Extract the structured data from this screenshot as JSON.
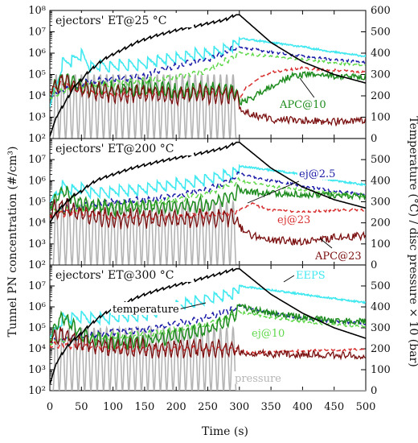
{
  "chart_data": {
    "type": "line",
    "xlabel": "Time (s)",
    "ylabel_left": "Tunnel PN concentration (#/cm³)",
    "ylabel_right": "Temperature (°C) / disc pressure × 10 (bar)",
    "x_ticks": [
      0,
      50,
      100,
      150,
      200,
      250,
      300,
      350,
      400,
      450,
      500
    ],
    "xlim": [
      0,
      500
    ],
    "y_left_scale": "log",
    "y_left_ticks": [
      "10²",
      "10³",
      "10⁴",
      "10⁵",
      "10⁶",
      "10⁷",
      "10⁸"
    ],
    "y_left_exponents": [
      2,
      3,
      4,
      5,
      6,
      7,
      8
    ],
    "y_right_ticks": [
      0,
      100,
      200,
      300,
      400,
      500,
      600
    ],
    "y_right_lim": [
      0,
      600
    ],
    "colors": {
      "temperature": "#000000",
      "pressure": "#b4b4b4",
      "EEPS": "#40e8f0",
      "ej2_5": "#1a1aa8",
      "ej10": "#5fd84a",
      "ej23": "#d83030",
      "APC10": "#1e8c1e",
      "APC23": "#7a0e0e"
    },
    "panels": [
      {
        "title": "ejectors' ET@25 °C",
        "temperature": {
          "x": [
            0,
            10,
            20,
            30,
            40,
            50,
            60,
            70,
            80,
            90,
            100,
            110,
            120,
            130,
            140,
            150,
            160,
            170,
            180,
            190,
            200,
            210,
            220,
            230,
            240,
            250,
            260,
            270,
            280,
            290,
            295,
            300,
            350,
            400,
            450,
            500
          ],
          "y": [
            10,
            100,
            150,
            200,
            250,
            275,
            310,
            335,
            360,
            380,
            395,
            410,
            425,
            440,
            455,
            465,
            475,
            485,
            492,
            500,
            508,
            515,
            520,
            527,
            533,
            540,
            546,
            552,
            560,
            575,
            580,
            580,
            450,
            360,
            300,
            260
          ]
        },
        "EEPS_peaks": {
          "x": [
            0,
            20,
            35,
            50,
            65,
            80,
            95,
            110,
            125,
            140,
            155,
            170,
            185,
            200,
            215,
            230,
            245,
            260,
            275,
            290,
            300,
            350,
            400,
            450,
            500
          ],
          "y": [
            3.5,
            5.8,
            5.9,
            6.2,
            5.6,
            5.7,
            5.6,
            5.7,
            5.7,
            5.7,
            5.8,
            5.9,
            6.0,
            6.0,
            6.1,
            6.2,
            6.2,
            6.3,
            6.4,
            6.6,
            6.7,
            6.5,
            6.3,
            6.05,
            5.85
          ]
        },
        "ej2_5": {
          "x": [
            0,
            50,
            100,
            150,
            170,
            200,
            230,
            260,
            290,
            300,
            350,
            400,
            450,
            500
          ],
          "y": [
            4.0,
            4.6,
            4.8,
            4.9,
            5.2,
            5.4,
            5.6,
            5.8,
            6.2,
            6.3,
            6.05,
            5.85,
            5.7,
            5.55
          ]
        },
        "ej10": {
          "x": [
            0,
            50,
            100,
            150,
            200,
            250,
            290,
            300,
            350,
            400,
            450,
            500
          ],
          "y": [
            4.0,
            4.5,
            4.6,
            4.7,
            4.9,
            5.2,
            5.8,
            6.0,
            5.85,
            5.7,
            5.55,
            5.4
          ]
        },
        "ej23": {
          "x": [
            0,
            20,
            50,
            100,
            150,
            200,
            250,
            295,
            300,
            310,
            330,
            350,
            400,
            450,
            500
          ],
          "y": [
            4.2,
            4.6,
            4.2,
            4.0,
            4.1,
            4.1,
            4.1,
            4.1,
            3.8,
            4.4,
            4.8,
            5.1,
            5.3,
            5.2,
            5.1
          ]
        },
        "APC10": {
          "x": [
            0,
            20,
            50,
            100,
            150,
            200,
            250,
            295,
            300,
            320,
            340,
            360,
            380,
            400,
            430,
            460,
            500
          ],
          "y": [
            4.2,
            4.8,
            4.4,
            4.3,
            4.4,
            4.2,
            4.3,
            4.2,
            3.7,
            3.9,
            4.3,
            4.6,
            4.9,
            5.0,
            5.0,
            4.9,
            4.9
          ]
        },
        "APC23": {
          "x": [
            0,
            20,
            50,
            100,
            150,
            200,
            250,
            295,
            300,
            320,
            350,
            400,
            450,
            500
          ],
          "y": [
            4.3,
            4.7,
            4.3,
            4.1,
            4.1,
            4.0,
            4.1,
            4.0,
            3.4,
            3.1,
            2.9,
            2.85,
            2.8,
            2.8
          ]
        },
        "annotations": [
          {
            "text": "APC@10",
            "color": "#1e8c1e"
          }
        ]
      },
      {
        "title": "ejectors' ET@200 °C",
        "temperature": {
          "x": [
            0,
            10,
            20,
            30,
            40,
            50,
            60,
            70,
            80,
            90,
            100,
            110,
            120,
            130,
            140,
            150,
            160,
            170,
            180,
            190,
            200,
            210,
            220,
            230,
            240,
            250,
            260,
            270,
            280,
            290,
            295,
            300,
            350,
            400,
            450,
            500
          ],
          "y": [
            200,
            250,
            280,
            310,
            335,
            350,
            375,
            395,
            410,
            420,
            430,
            440,
            450,
            460,
            468,
            475,
            482,
            490,
            496,
            502,
            508,
            514,
            520,
            526,
            532,
            538,
            545,
            552,
            560,
            575,
            582,
            582,
            460,
            370,
            310,
            270
          ]
        },
        "EEPS_peaks": {
          "x": [
            0,
            20,
            35,
            50,
            65,
            80,
            95,
            110,
            125,
            140,
            155,
            170,
            185,
            200,
            215,
            230,
            245,
            260,
            275,
            290,
            300,
            350,
            400,
            450,
            500
          ],
          "y": [
            5.0,
            6.0,
            5.8,
            5.9,
            5.7,
            5.7,
            5.7,
            5.8,
            5.8,
            5.8,
            5.9,
            6.0,
            6.0,
            6.1,
            6.1,
            6.2,
            6.3,
            6.4,
            6.5,
            6.6,
            6.7,
            6.5,
            6.3,
            6.0,
            5.8
          ]
        },
        "ej2_5": {
          "x": [
            0,
            50,
            100,
            150,
            200,
            250,
            290,
            300,
            350,
            400,
            450,
            500
          ],
          "y": [
            4.5,
            4.8,
            5.0,
            5.1,
            5.3,
            5.6,
            6.1,
            6.35,
            6.0,
            5.75,
            5.5,
            5.35
          ]
        },
        "ej10": {
          "x": [
            0,
            50,
            100,
            150,
            200,
            250,
            290,
            300,
            350,
            400,
            450,
            500
          ],
          "y": [
            4.5,
            4.7,
            4.8,
            4.9,
            5.1,
            5.4,
            5.9,
            6.0,
            5.75,
            5.55,
            5.4,
            5.25
          ]
        },
        "ej23": {
          "x": [
            0,
            50,
            100,
            150,
            200,
            250,
            290,
            300,
            320,
            350,
            400,
            450,
            500
          ],
          "y": [
            4.4,
            4.5,
            4.3,
            4.3,
            4.3,
            4.4,
            4.5,
            4.6,
            4.9,
            4.6,
            4.5,
            4.6,
            4.6
          ]
        },
        "APC10": {
          "x": [
            0,
            20,
            50,
            100,
            150,
            200,
            250,
            290,
            300,
            350,
            400,
            450,
            500
          ],
          "y": [
            4.8,
            5.5,
            4.9,
            4.7,
            4.8,
            4.8,
            4.9,
            5.3,
            5.5,
            5.4,
            5.35,
            5.3,
            5.3
          ]
        },
        "APC23": {
          "x": [
            0,
            20,
            50,
            100,
            150,
            200,
            250,
            290,
            300,
            320,
            350,
            400,
            450,
            500
          ],
          "y": [
            4.5,
            4.8,
            4.4,
            4.2,
            4.2,
            4.2,
            4.2,
            4.3,
            3.8,
            3.4,
            3.2,
            3.1,
            3.3,
            3.4
          ]
        },
        "annotations": [
          {
            "text": "ej@2.5",
            "color": "#1a1aa8"
          },
          {
            "text": "ej@23",
            "color": "#d83030"
          },
          {
            "text": "APC@23",
            "color": "#7a0e0e"
          }
        ]
      },
      {
        "title": "ejectors' ET@300 °C",
        "temperature": {
          "x": [
            0,
            10,
            20,
            30,
            40,
            50,
            60,
            70,
            80,
            90,
            100,
            110,
            120,
            130,
            140,
            150,
            160,
            170,
            180,
            190,
            200,
            210,
            220,
            230,
            240,
            250,
            260,
            270,
            280,
            290,
            295,
            300,
            350,
            400,
            450,
            500
          ],
          "y": [
            30,
            130,
            180,
            220,
            250,
            275,
            305,
            330,
            355,
            375,
            390,
            405,
            420,
            435,
            448,
            460,
            470,
            480,
            488,
            496,
            505,
            512,
            520,
            528,
            536,
            544,
            552,
            560,
            570,
            578,
            582,
            582,
            460,
            370,
            300,
            250
          ]
        },
        "EEPS_peaks": {
          "x": [
            0,
            20,
            35,
            50,
            65,
            80,
            95,
            110,
            125,
            140,
            155,
            170,
            185,
            200,
            215,
            230,
            245,
            260,
            275,
            290,
            300,
            350,
            400,
            450,
            500
          ],
          "y": [
            4.5,
            5.7,
            5.7,
            5.8,
            5.7,
            5.7,
            5.7,
            5.8,
            5.8,
            5.8,
            5.9,
            6.0,
            6.2,
            6.3,
            6.4,
            6.5,
            6.6,
            6.7,
            6.8,
            6.9,
            7.0,
            6.8,
            6.6,
            6.4,
            6.2
          ]
        },
        "ej2_5": {
          "x": [
            0,
            50,
            100,
            150,
            200,
            250,
            290,
            300,
            350,
            400,
            450,
            500
          ],
          "y": [
            4.3,
            4.6,
            4.8,
            4.9,
            5.2,
            5.5,
            5.9,
            6.05,
            5.7,
            5.45,
            5.3,
            5.2
          ]
        },
        "ej10": {
          "x": [
            0,
            50,
            100,
            150,
            200,
            250,
            290,
            300,
            350,
            400,
            450,
            500
          ],
          "y": [
            4.3,
            4.5,
            4.6,
            4.7,
            4.9,
            5.2,
            5.6,
            5.75,
            5.5,
            5.3,
            5.15,
            5.05
          ]
        },
        "ej23": {
          "x": [
            0,
            50,
            100,
            150,
            200,
            250,
            290,
            300,
            320,
            350,
            400,
            450,
            500
          ],
          "y": [
            4.2,
            4.1,
            4.0,
            4.0,
            4.0,
            4.0,
            4.0,
            3.9,
            3.8,
            3.85,
            3.9,
            3.95,
            3.95
          ]
        },
        "APC10": {
          "x": [
            0,
            20,
            50,
            100,
            150,
            200,
            250,
            290,
            300,
            350,
            400,
            450,
            500
          ],
          "y": [
            4.6,
            5.6,
            4.7,
            4.3,
            4.4,
            4.6,
            4.9,
            5.5,
            6.0,
            5.7,
            5.5,
            5.35,
            5.3
          ]
        },
        "APC23": {
          "x": [
            0,
            20,
            50,
            100,
            150,
            200,
            250,
            290,
            300,
            350,
            400,
            450,
            500
          ],
          "y": [
            4.4,
            4.7,
            4.3,
            4.1,
            4.0,
            4.0,
            4.0,
            4.0,
            3.8,
            3.75,
            3.75,
            3.7,
            3.7
          ]
        },
        "annotations": [
          {
            "text": "EEPS",
            "color": "#40e8f0"
          },
          {
            "text": "temperature",
            "color": "#000000"
          },
          {
            "text": "ej@10",
            "color": "#5fd84a"
          },
          {
            "text": "pressure",
            "color": "#b4b4b4"
          }
        ]
      }
    ],
    "pressure_peaks": {
      "x": [
        10,
        20,
        30,
        40,
        50,
        60,
        70,
        80,
        90,
        100,
        110,
        120,
        130,
        140,
        150,
        160,
        170,
        180,
        190,
        200,
        210,
        220,
        230,
        240,
        250,
        260,
        270,
        280,
        290
      ],
      "peak_value": 300
    }
  }
}
